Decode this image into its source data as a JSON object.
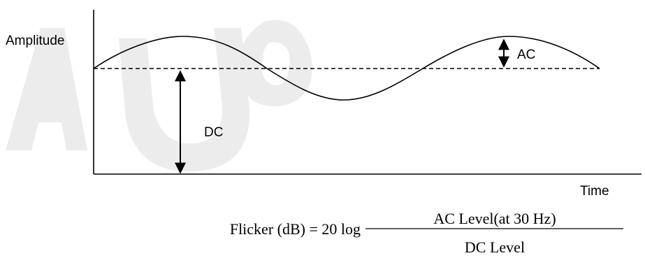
{
  "watermark": {
    "text": "AUO",
    "color": "#e6e6e6"
  },
  "diagram": {
    "y_axis_label": "Amplitude",
    "x_axis_label": "Time",
    "ac_label": "AC",
    "dc_label": "DC",
    "line_color": "#000000"
  },
  "formula": {
    "lhs": "Flicker (dB) = 20 log",
    "numerator": "AC  Level(at 30 Hz)",
    "denominator": "DC  Level"
  }
}
